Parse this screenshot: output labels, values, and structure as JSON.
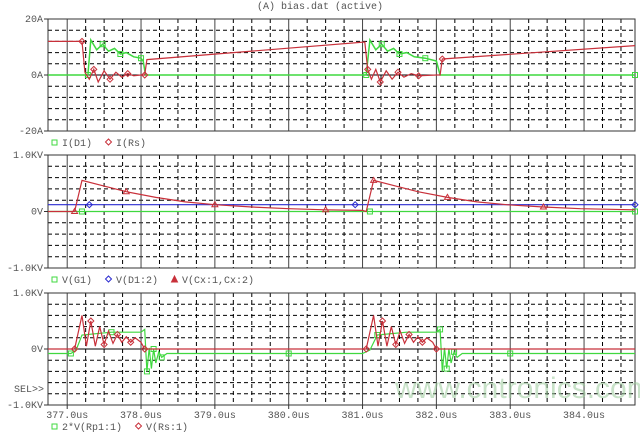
{
  "window_title": "(A) bias.dat (active)",
  "watermark": "www.cntronics.com",
  "sel_label": "SEL>>",
  "colors": {
    "green": "#3fd83f",
    "red": "#c8303a",
    "blue": "#2b2bd0",
    "grid": "#000000",
    "text": "#555555"
  },
  "chart_data": [
    {
      "type": "line",
      "ylim": [
        -20,
        20
      ],
      "ytick_labels": [
        "20A",
        "0A",
        "-20A"
      ],
      "xlim": [
        376.74,
        384.69
      ],
      "grid": true,
      "legend": [
        {
          "symbol": "square",
          "label": "I(D1)"
        },
        {
          "symbol": "diamond",
          "label": "I(Rs)"
        }
      ],
      "series": [
        {
          "name": "I(D1)",
          "color": "green",
          "marker": "square",
          "points": [
            [
              376.74,
              0
            ],
            [
              377.28,
              0
            ],
            [
              377.32,
              12.5
            ],
            [
              377.4,
              9
            ],
            [
              377.48,
              11
            ],
            [
              377.56,
              8.5
            ],
            [
              377.64,
              9.5
            ],
            [
              377.72,
              7.5
            ],
            [
              377.8,
              8
            ],
            [
              377.9,
              6.5
            ],
            [
              378.0,
              6
            ],
            [
              378.03,
              5
            ],
            [
              378.06,
              0
            ],
            [
              381.05,
              0
            ],
            [
              381.1,
              12.5
            ],
            [
              381.18,
              9
            ],
            [
              381.26,
              11
            ],
            [
              381.34,
              8.5
            ],
            [
              381.42,
              9.5
            ],
            [
              381.5,
              7.5
            ],
            [
              381.6,
              8
            ],
            [
              381.7,
              6.5
            ],
            [
              381.85,
              6
            ],
            [
              382.0,
              5
            ],
            [
              382.05,
              0
            ],
            [
              384.69,
              0
            ]
          ]
        },
        {
          "name": "I(Rs)",
          "color": "red",
          "marker": "diamond",
          "points": [
            [
              376.74,
              12
            ],
            [
              377.2,
              12
            ],
            [
              377.24,
              1
            ],
            [
              377.3,
              -1.5
            ],
            [
              377.36,
              2
            ],
            [
              377.42,
              -2.5
            ],
            [
              377.5,
              1.5
            ],
            [
              377.58,
              -1.5
            ],
            [
              377.66,
              1
            ],
            [
              377.74,
              -0.8
            ],
            [
              377.82,
              0.5
            ],
            [
              377.9,
              -0.3
            ],
            [
              378.0,
              0
            ],
            [
              378.05,
              0
            ],
            [
              378.08,
              5.5
            ],
            [
              381.03,
              11.8
            ],
            [
              381.07,
              2
            ],
            [
              381.12,
              -1.5
            ],
            [
              381.18,
              2
            ],
            [
              381.24,
              -2.5
            ],
            [
              381.32,
              1.5
            ],
            [
              381.4,
              -1.5
            ],
            [
              381.48,
              1
            ],
            [
              381.56,
              -0.8
            ],
            [
              381.66,
              0.5
            ],
            [
              381.76,
              -0.3
            ],
            [
              382.0,
              0
            ],
            [
              382.05,
              0
            ],
            [
              382.08,
              5.7
            ],
            [
              384.69,
              10.5
            ]
          ]
        }
      ]
    },
    {
      "type": "line",
      "ylim": [
        -1,
        1
      ],
      "ytick_labels": [
        "1.0KV",
        "0V",
        "-1.0KV"
      ],
      "xlim": [
        376.74,
        384.69
      ],
      "grid": true,
      "legend": [
        {
          "symbol": "square",
          "label": "V(G1)"
        },
        {
          "symbol": "diamond",
          "label": "V(D1:2)"
        },
        {
          "symbol": "triangle",
          "label": "V(Cx:1,Cx:2)"
        }
      ],
      "series": [
        {
          "name": "V(G1)",
          "color": "green",
          "marker": "square",
          "points": [
            [
              376.74,
              0
            ],
            [
              377.2,
              0
            ],
            [
              378.5,
              0
            ],
            [
              379.9,
              0
            ],
            [
              381.1,
              0
            ],
            [
              382.3,
              0
            ],
            [
              383.6,
              0
            ],
            [
              384.69,
              0
            ]
          ]
        },
        {
          "name": "V(D1:2)",
          "color": "blue",
          "marker": "diamond",
          "points": [
            [
              376.74,
              0.12
            ],
            [
              377.3,
              0.12
            ],
            [
              378.4,
              0.12
            ],
            [
              379.6,
              0.12
            ],
            [
              380.9,
              0.12
            ],
            [
              382.0,
              0.12
            ],
            [
              383.3,
              0.12
            ],
            [
              384.69,
              0.12
            ]
          ]
        },
        {
          "name": "V(Cx:1,Cx:2)",
          "color": "red",
          "marker": "triangle",
          "points": [
            [
              376.74,
              0
            ],
            [
              377.1,
              0
            ],
            [
              377.2,
              0.55
            ],
            [
              377.5,
              0.45
            ],
            [
              377.8,
              0.35
            ],
            [
              378.2,
              0.25
            ],
            [
              378.6,
              0.17
            ],
            [
              379.0,
              0.12
            ],
            [
              379.5,
              0.08
            ],
            [
              380.0,
              0.05
            ],
            [
              380.5,
              0.03
            ],
            [
              381.0,
              0.02
            ],
            [
              381.05,
              0
            ],
            [
              381.15,
              0.55
            ],
            [
              381.45,
              0.45
            ],
            [
              381.75,
              0.35
            ],
            [
              382.15,
              0.25
            ],
            [
              382.55,
              0.17
            ],
            [
              382.95,
              0.12
            ],
            [
              383.45,
              0.08
            ],
            [
              383.95,
              0.05
            ],
            [
              384.69,
              0.03
            ]
          ]
        }
      ]
    },
    {
      "type": "line",
      "ylim": [
        -1,
        1
      ],
      "ytick_labels": [
        "1.0KV",
        "0V",
        "-1.0KV"
      ],
      "xlim": [
        376.74,
        384.69
      ],
      "xtick_labels": [
        "377.0us",
        "378.0us",
        "379.0us",
        "380.0us",
        "381.0us",
        "382.0us",
        "383.0us",
        "384.0us"
      ],
      "xticks": [
        377,
        378,
        379,
        380,
        381,
        382,
        383,
        384
      ],
      "grid": true,
      "legend": [
        {
          "symbol": "square",
          "label": "2*V(Rp1:1)"
        },
        {
          "symbol": "diamond",
          "label": "V(Rs:1)"
        }
      ],
      "series": [
        {
          "name": "2*V(Rp1:1)",
          "color": "green",
          "marker": "square",
          "points": [
            [
              376.74,
              -0.08
            ],
            [
              377.05,
              -0.08
            ],
            [
              377.12,
              -0.02
            ],
            [
              377.2,
              0.25
            ],
            [
              377.6,
              0.3
            ],
            [
              378.0,
              0.3
            ],
            [
              378.05,
              0.35
            ],
            [
              378.08,
              -0.4
            ],
            [
              378.11,
              0.02
            ],
            [
              378.14,
              -0.35
            ],
            [
              378.17,
              0.0
            ],
            [
              378.2,
              -0.25
            ],
            [
              378.24,
              -0.05
            ],
            [
              378.28,
              -0.15
            ],
            [
              378.35,
              -0.08
            ],
            [
              379.0,
              -0.08
            ],
            [
              380.0,
              -0.08
            ],
            [
              381.0,
              -0.08
            ],
            [
              381.1,
              -0.02
            ],
            [
              381.2,
              0.25
            ],
            [
              381.6,
              0.3
            ],
            [
              382.0,
              0.3
            ],
            [
              382.05,
              0.35
            ],
            [
              382.08,
              -0.4
            ],
            [
              382.11,
              0.02
            ],
            [
              382.14,
              -0.35
            ],
            [
              382.17,
              0.0
            ],
            [
              382.2,
              -0.25
            ],
            [
              382.24,
              -0.05
            ],
            [
              382.28,
              -0.15
            ],
            [
              382.35,
              -0.08
            ],
            [
              383.0,
              -0.08
            ],
            [
              384.69,
              -0.08
            ]
          ]
        },
        {
          "name": "V(Rs:1)",
          "color": "red",
          "marker": "diamond",
          "points": [
            [
              376.74,
              0
            ],
            [
              377.1,
              0
            ],
            [
              377.2,
              0.6
            ],
            [
              377.26,
              0.05
            ],
            [
              377.32,
              0.5
            ],
            [
              377.38,
              0.05
            ],
            [
              377.44,
              0.4
            ],
            [
              377.5,
              0.08
            ],
            [
              377.56,
              0.32
            ],
            [
              377.62,
              0.1
            ],
            [
              377.68,
              0.26
            ],
            [
              377.74,
              0.12
            ],
            [
              377.8,
              0.22
            ],
            [
              377.86,
              0.12
            ],
            [
              377.92,
              0.2
            ],
            [
              378.0,
              0.12
            ],
            [
              378.05,
              0
            ],
            [
              379.0,
              0
            ],
            [
              380.0,
              0
            ],
            [
              381.05,
              0
            ],
            [
              381.15,
              0.6
            ],
            [
              381.21,
              0.05
            ],
            [
              381.27,
              0.5
            ],
            [
              381.33,
              0.05
            ],
            [
              381.39,
              0.4
            ],
            [
              381.45,
              0.08
            ],
            [
              381.51,
              0.32
            ],
            [
              381.57,
              0.1
            ],
            [
              381.63,
              0.26
            ],
            [
              381.69,
              0.12
            ],
            [
              381.75,
              0.22
            ],
            [
              381.81,
              0.12
            ],
            [
              381.87,
              0.2
            ],
            [
              381.95,
              0.12
            ],
            [
              382.0,
              0
            ],
            [
              383.0,
              0
            ],
            [
              384.69,
              0
            ]
          ]
        }
      ]
    }
  ]
}
